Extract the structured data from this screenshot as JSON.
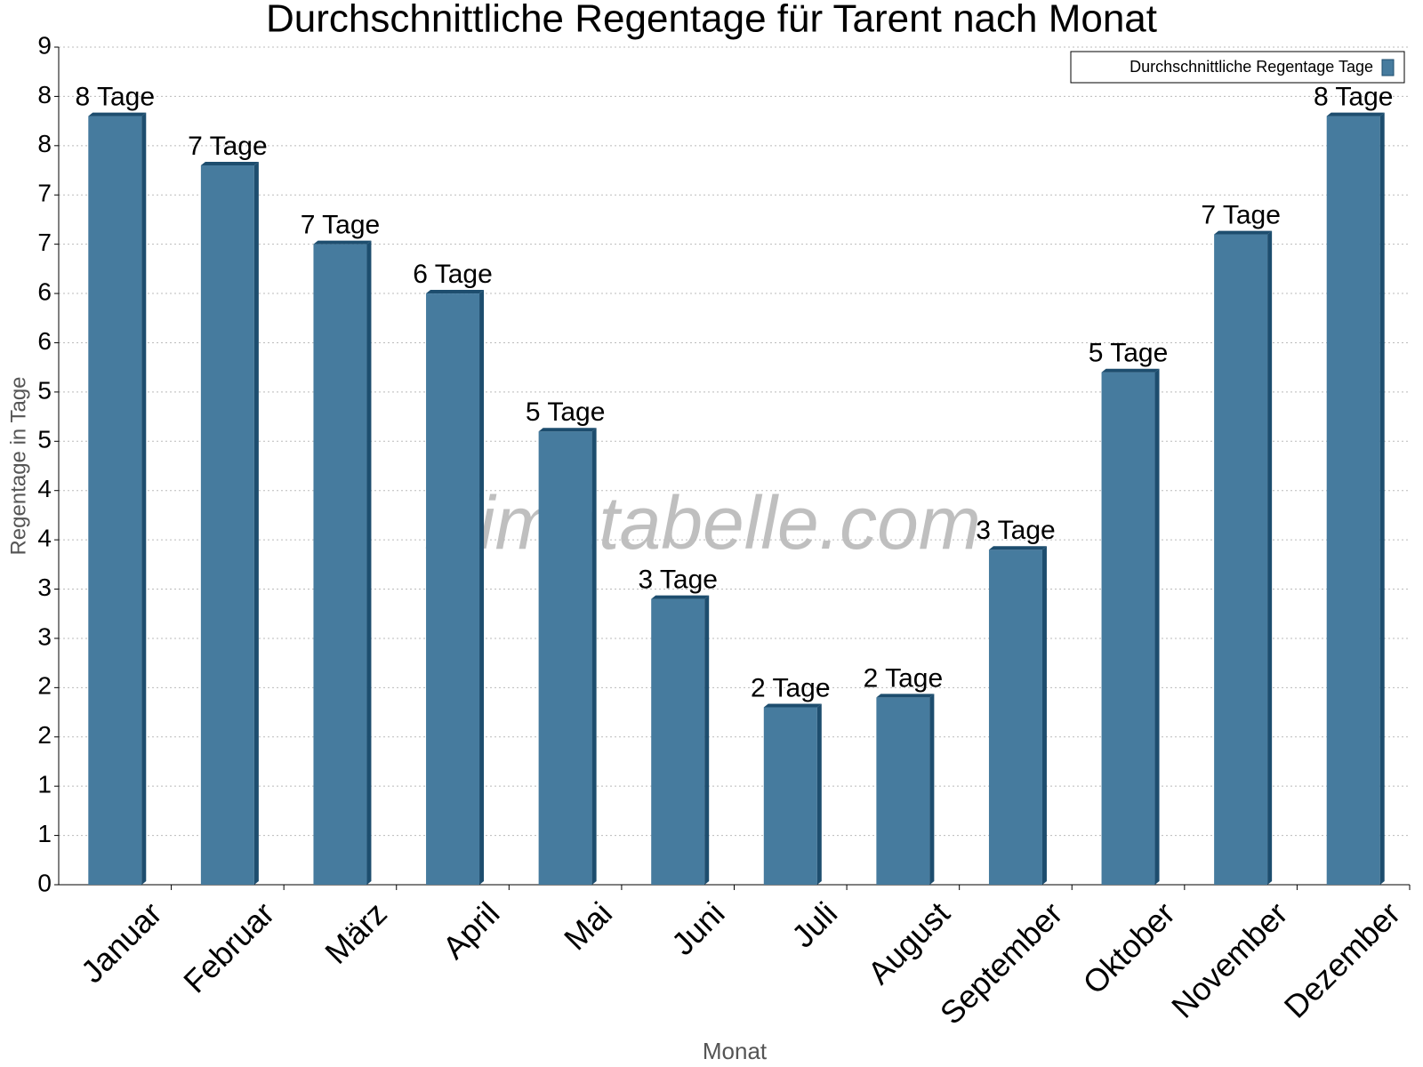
{
  "chart_data": {
    "type": "bar",
    "title": "Durchschnittliche Regentage für Tarent nach Monat",
    "x_label": "Monat",
    "y_label": "Regentage in Tage",
    "watermark": "klimatabelle.com",
    "legend_position": "upper right",
    "grid": true,
    "categories": [
      "Januar",
      "Februar",
      "März",
      "April",
      "Mai",
      "Juni",
      "Juli",
      "August",
      "September",
      "Oktober",
      "November",
      "Dezember"
    ],
    "series": [
      {
        "name": "Durchschnittliche Regentage Tage",
        "color": "#467b9e",
        "values": [
          7.8,
          7.3,
          6.5,
          6.0,
          4.6,
          2.9,
          1.8,
          1.9,
          3.4,
          5.2,
          6.6,
          7.8
        ],
        "value_labels": [
          "8 Tage",
          "7 Tage",
          "7 Tage",
          "6 Tage",
          "5 Tage",
          "3 Tage",
          "2 Tage",
          "2 Tage",
          "3 Tage",
          "5 Tage",
          "7 Tage",
          "8 Tage"
        ]
      }
    ],
    "ylim": [
      0,
      8.5
    ],
    "yticks": [
      0,
      {
        "value": 0.5,
        "label": "1"
      },
      1,
      {
        "value": 1.5,
        "label": "2"
      },
      2,
      {
        "value": 2.5,
        "label": "3"
      },
      3,
      {
        "value": 3.5,
        "label": "4"
      },
      4,
      {
        "value": 4.5,
        "label": "5"
      },
      5,
      {
        "value": 5.5,
        "label": "6"
      },
      6,
      {
        "value": 6.5,
        "label": "7"
      },
      7,
      {
        "value": 7.5,
        "label": "8"
      },
      8,
      {
        "value": 8.5,
        "label": "9"
      }
    ]
  }
}
